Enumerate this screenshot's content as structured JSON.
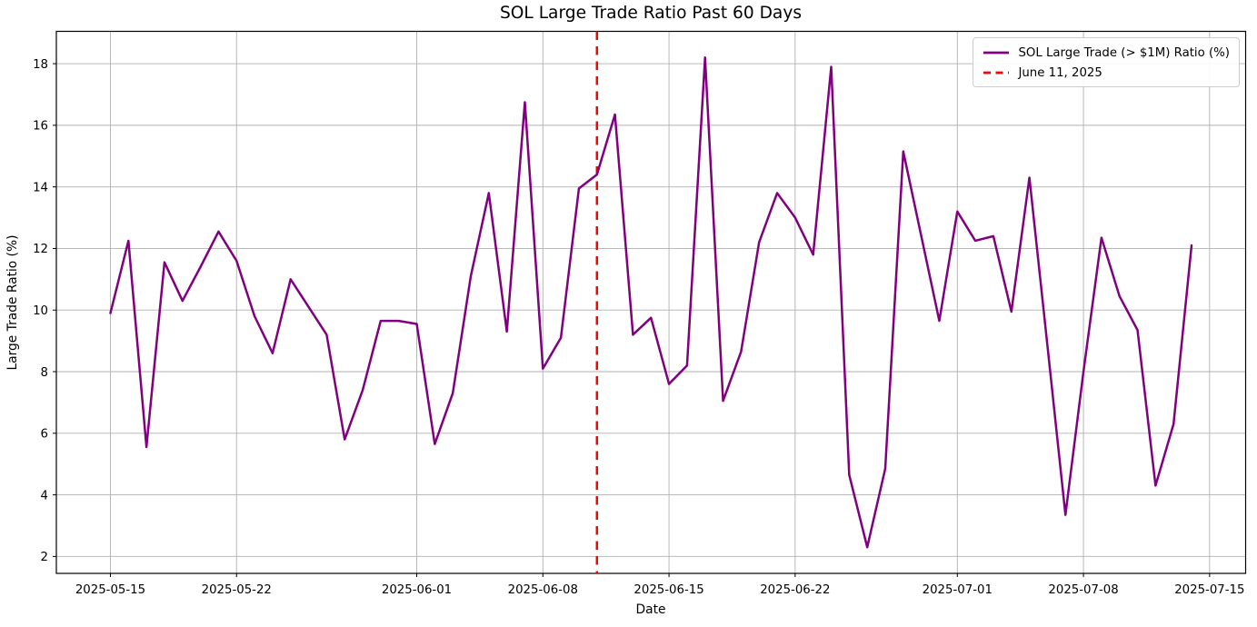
{
  "title": "SOL Large Trade Ratio Past 60 Days",
  "chart_data": {
    "type": "line",
    "title": "SOL Large Trade Ratio Past 60 Days",
    "xlabel": "Date",
    "ylabel": "Large Trade Ratio (%)",
    "grid": true,
    "legend_position": "upper right",
    "ylim": [
      1.45,
      19.05
    ],
    "y_ticks": [
      2,
      4,
      6,
      8,
      10,
      12,
      14,
      16,
      18
    ],
    "x_tick_labels": [
      "2025-05-15",
      "2025-05-22",
      "2025-06-01",
      "2025-06-08",
      "2025-06-15",
      "2025-06-22",
      "2025-07-01",
      "2025-07-08",
      "2025-07-15"
    ],
    "x_tick_day_index": [
      0,
      7,
      17,
      24,
      31,
      38,
      47,
      54,
      61
    ],
    "xlim_day_index": [
      -3,
      63
    ],
    "x": [
      "2025-05-15",
      "2025-05-16",
      "2025-05-17",
      "2025-05-18",
      "2025-05-19",
      "2025-05-20",
      "2025-05-21",
      "2025-05-22",
      "2025-05-23",
      "2025-05-24",
      "2025-05-25",
      "2025-05-26",
      "2025-05-27",
      "2025-05-28",
      "2025-05-29",
      "2025-05-30",
      "2025-05-31",
      "2025-06-01",
      "2025-06-02",
      "2025-06-03",
      "2025-06-04",
      "2025-06-05",
      "2025-06-06",
      "2025-06-07",
      "2025-06-08",
      "2025-06-09",
      "2025-06-10",
      "2025-06-11",
      "2025-06-12",
      "2025-06-13",
      "2025-06-14",
      "2025-06-15",
      "2025-06-16",
      "2025-06-17",
      "2025-06-18",
      "2025-06-19",
      "2025-06-20",
      "2025-06-21",
      "2025-06-22",
      "2025-06-23",
      "2025-06-24",
      "2025-06-25",
      "2025-06-26",
      "2025-06-27",
      "2025-06-28",
      "2025-06-29",
      "2025-06-30",
      "2025-07-01",
      "2025-07-02",
      "2025-07-03",
      "2025-07-04",
      "2025-07-05",
      "2025-07-06",
      "2025-07-07",
      "2025-07-08",
      "2025-07-09",
      "2025-07-10",
      "2025-07-11",
      "2025-07-12",
      "2025-07-13",
      "2025-07-14"
    ],
    "series": [
      {
        "name": "SOL Large Trade (> $1M) Ratio (%)",
        "color": "#800080",
        "line_width": 2.5,
        "values": [
          9.9,
          12.25,
          5.55,
          11.55,
          10.3,
          11.4,
          12.55,
          11.6,
          9.8,
          8.6,
          11.0,
          10.1,
          9.2,
          5.8,
          7.4,
          9.65,
          9.65,
          9.55,
          5.65,
          7.3,
          11.1,
          13.8,
          9.3,
          16.75,
          8.1,
          9.1,
          13.95,
          14.4,
          16.35,
          9.2,
          9.75,
          7.6,
          8.2,
          18.2,
          7.05,
          8.65,
          12.2,
          13.8,
          13.0,
          11.8,
          17.9,
          4.65,
          2.3,
          4.85,
          15.15,
          12.4,
          9.65,
          13.2,
          12.25,
          12.4,
          9.95,
          14.3,
          8.85,
          3.35,
          8.0,
          12.35,
          10.45,
          9.35,
          4.3,
          6.3,
          12.1
        ]
      }
    ],
    "vline": {
      "label": "June 11, 2025",
      "date": "2025-06-11",
      "day_index": 27,
      "color": "#ff0000",
      "style": "dashed",
      "line_width": 2.5
    },
    "grid_color": "#b0b0b0",
    "spine_color": "#000000",
    "background_color": "#ffffff"
  }
}
